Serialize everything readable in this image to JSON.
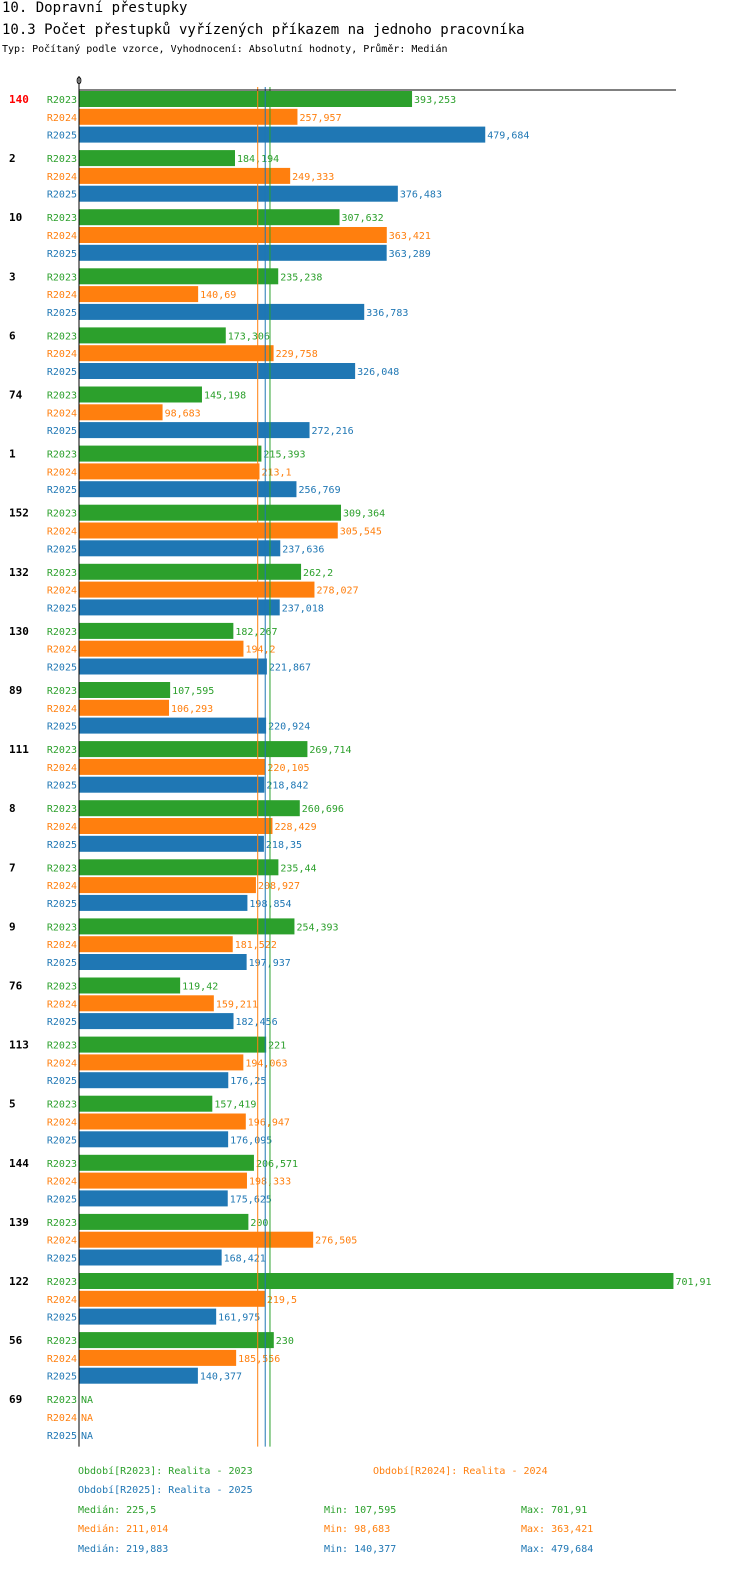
{
  "header": {
    "title": "10. Dopravní přestupky",
    "subtitle": "10.3 Počet přestupků vyřízených příkazem na jednoho pracovníka",
    "description": "Typ: Počítaný podle vzorce, Vyhodnocení: Absolutní hodnoty, Průměr: Medián"
  },
  "colors": {
    "R2023": "#2ca02c",
    "R2024": "#ff7f0e",
    "R2025": "#1f77b4",
    "highlight": "#ff0000"
  },
  "chart_data": {
    "type": "bar",
    "orientation": "horizontal",
    "axis_zero_label": "0",
    "xlim": [
      0,
      720
    ],
    "series_names": [
      "R2023",
      "R2024",
      "R2025"
    ],
    "groups": [
      {
        "label": "140",
        "highlight": true,
        "values": [
          "393,253",
          "257,957",
          "479,684"
        ]
      },
      {
        "label": "2",
        "values": [
          "184,194",
          "249,333",
          "376,483"
        ]
      },
      {
        "label": "10",
        "values": [
          "307,632",
          "363,421",
          "363,289"
        ]
      },
      {
        "label": "3",
        "values": [
          "235,238",
          "140,69",
          "336,783"
        ]
      },
      {
        "label": "6",
        "values": [
          "173,306",
          "229,758",
          "326,048"
        ]
      },
      {
        "label": "74",
        "values": [
          "145,198",
          "98,683",
          "272,216"
        ]
      },
      {
        "label": "1",
        "values": [
          "215,393",
          "213,1",
          "256,769"
        ]
      },
      {
        "label": "152",
        "values": [
          "309,364",
          "305,545",
          "237,636"
        ]
      },
      {
        "label": "132",
        "values": [
          "262,2",
          "278,027",
          "237,018"
        ]
      },
      {
        "label": "130",
        "values": [
          "182,267",
          "194,2",
          "221,867"
        ]
      },
      {
        "label": "89",
        "values": [
          "107,595",
          "106,293",
          "220,924"
        ]
      },
      {
        "label": "111",
        "values": [
          "269,714",
          "220,105",
          "218,842"
        ]
      },
      {
        "label": "8",
        "values": [
          "260,696",
          "228,429",
          "218,35"
        ]
      },
      {
        "label": "7",
        "values": [
          "235,44",
          "208,927",
          "198,854"
        ]
      },
      {
        "label": "9",
        "values": [
          "254,393",
          "181,522",
          "197,937"
        ]
      },
      {
        "label": "76",
        "values": [
          "119,42",
          "159,211",
          "182,456"
        ]
      },
      {
        "label": "113",
        "values": [
          "221",
          "194,063",
          "176,25"
        ]
      },
      {
        "label": "5",
        "values": [
          "157,419",
          "196,947",
          "176,095"
        ]
      },
      {
        "label": "144",
        "values": [
          "206,571",
          "198,333",
          "175,625"
        ]
      },
      {
        "label": "139",
        "values": [
          "200",
          "276,505",
          "168,421"
        ]
      },
      {
        "label": "122",
        "values": [
          "701,91",
          "219,5",
          "161,975"
        ]
      },
      {
        "label": "56",
        "values": [
          "230",
          "185,556",
          "140,377"
        ]
      },
      {
        "label": "69",
        "values": [
          "NA",
          "NA",
          "NA"
        ]
      }
    ],
    "medians": {
      "R2023": 225.5,
      "R2024": 211.014,
      "R2025": 219.883
    }
  },
  "legend": {
    "period_2023": "Období[R2023]: Realita - 2023",
    "period_2024": "Období[R2024]: Realita - 2024",
    "period_2025": "Období[R2025]: Realita - 2025",
    "stats": [
      {
        "median": "Medián: 225,5",
        "min": "Min: 107,595",
        "max": "Max: 701,91"
      },
      {
        "median": "Medián: 211,014",
        "min": "Min: 98,683",
        "max": "Max: 363,421"
      },
      {
        "median": "Medián: 219,883",
        "min": "Min: 140,377",
        "max": "Max: 479,684"
      }
    ]
  }
}
